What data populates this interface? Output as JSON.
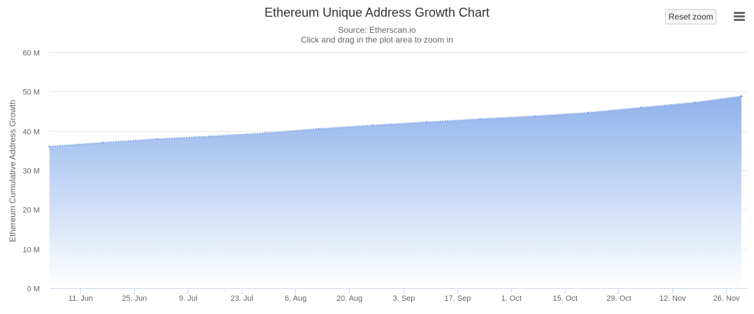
{
  "header": {
    "reset_zoom_label": "Reset zoom",
    "menu_icon": "hamburger-menu-icon"
  },
  "colors": {
    "area_top": "#90b2eb",
    "area_bottom": "#ffffff",
    "line": "#8fb0e8",
    "grid": "#e6e6e6",
    "axis": "#ccd6eb"
  },
  "chart_data": {
    "type": "area",
    "title": "Ethereum Unique Address Growth Chart",
    "subtitle": "Source: Etherscan.io",
    "subtitle2": "Click and drag in the plot area to zoom in",
    "xlabel": "",
    "ylabel": "Ethereum Cumulative Address Growth",
    "ylim": [
      0,
      60000000
    ],
    "y_ticks": [
      {
        "value": 0,
        "label": "0 M"
      },
      {
        "value": 10000000,
        "label": "10 M"
      },
      {
        "value": 20000000,
        "label": "20 M"
      },
      {
        "value": 30000000,
        "label": "30 M"
      },
      {
        "value": 40000000,
        "label": "40 M"
      },
      {
        "value": 50000000,
        "label": "50 M"
      },
      {
        "value": 60000000,
        "label": "60 M"
      }
    ],
    "xlim": [
      "2018-06-03",
      "2018-11-30"
    ],
    "x_ticks": [
      {
        "value": "2018-06-11",
        "label": "11. Jun"
      },
      {
        "value": "2018-06-25",
        "label": "25. Jun"
      },
      {
        "value": "2018-07-09",
        "label": "9. Jul"
      },
      {
        "value": "2018-07-23",
        "label": "23. Jul"
      },
      {
        "value": "2018-08-06",
        "label": "6. Aug"
      },
      {
        "value": "2018-08-20",
        "label": "20. Aug"
      },
      {
        "value": "2018-09-03",
        "label": "3. Sep"
      },
      {
        "value": "2018-09-17",
        "label": "17. Sep"
      },
      {
        "value": "2018-10-01",
        "label": "1. Oct"
      },
      {
        "value": "2018-10-15",
        "label": "15. Oct"
      },
      {
        "value": "2018-10-29",
        "label": "29. Oct"
      },
      {
        "value": "2018-11-12",
        "label": "12. Nov"
      },
      {
        "value": "2018-11-26",
        "label": "26. Nov"
      }
    ],
    "grid": true,
    "legend": "none",
    "series": [
      {
        "x": [
          "2018-06-03",
          "2018-06-17",
          "2018-07-01",
          "2018-07-15",
          "2018-07-29",
          "2018-08-12",
          "2018-08-26",
          "2018-09-09",
          "2018-09-23",
          "2018-10-07",
          "2018-10-21",
          "2018-11-04",
          "2018-11-18",
          "2018-11-30"
        ],
        "values": [
          36000000,
          37000000,
          37900000,
          38600000,
          39400000,
          40500000,
          41400000,
          42200000,
          43000000,
          43700000,
          44600000,
          45900000,
          47200000,
          48800000
        ]
      }
    ]
  }
}
